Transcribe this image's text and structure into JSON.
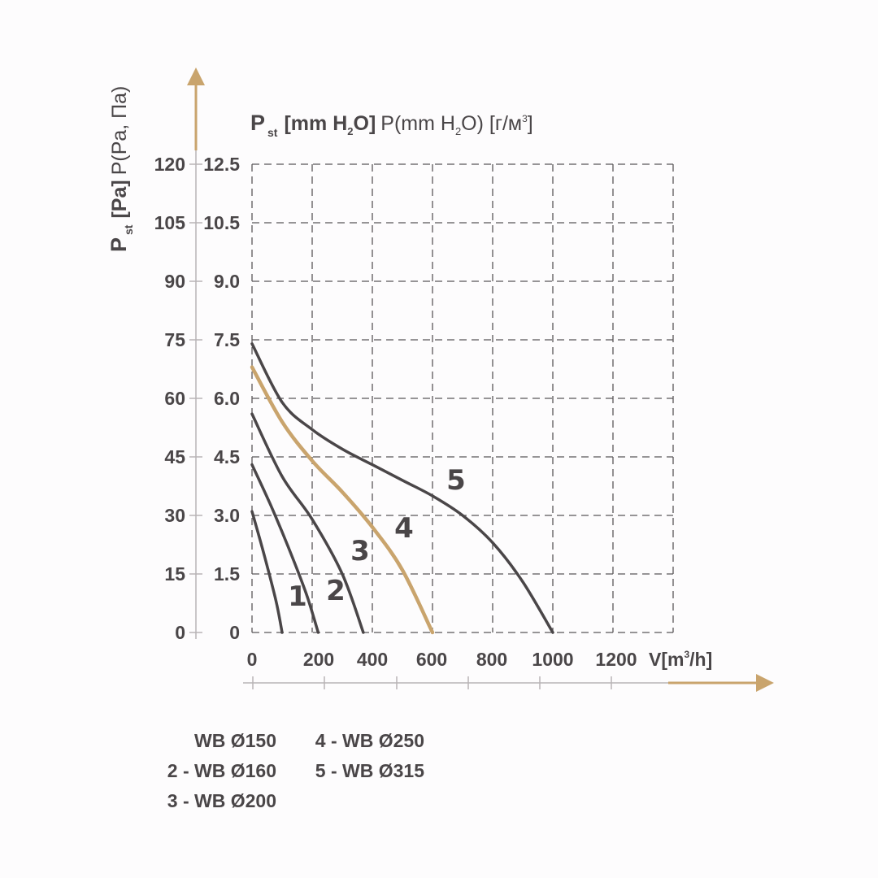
{
  "chart_data": {
    "type": "line",
    "title": "",
    "y_axis_left": {
      "label_main": "P",
      "label_sub": "st",
      "label_bold": "[Pa]",
      "label_rest": "P(Pa, Па)",
      "ticks": [
        "0",
        "15",
        "30",
        "45",
        "60",
        "75",
        "90",
        "105",
        "120"
      ]
    },
    "y_axis_right": {
      "label_main": "P",
      "label_sub": "st",
      "label_bold_pre": "[mm H",
      "label_bold_sub": "2",
      "label_bold_post": "O]",
      "label_rest_pre": "P(mm H",
      "label_rest_sub": "2",
      "label_rest_post": "O) [г/м",
      "label_rest_sup": "3",
      "label_rest_end": "]",
      "ticks": [
        "0",
        "1.5",
        "3.0",
        "4.5",
        "6.0",
        "7.5",
        "9.0",
        "10.5",
        "12.5"
      ]
    },
    "x_axis": {
      "label_pre": "V[m",
      "label_sup": "3",
      "label_post": "/h]",
      "ticks": [
        "0",
        "200",
        "400",
        "600",
        "800",
        "1000",
        "1200"
      ],
      "xlim": [
        0,
        1400
      ]
    },
    "ylim": [
      0,
      120
    ],
    "grid": true,
    "series": [
      {
        "name": "1",
        "color": "#4a4648",
        "x": [
          0,
          40,
          80,
          100
        ],
        "y": [
          31,
          20,
          8,
          0
        ]
      },
      {
        "name": "2",
        "color": "#4a4648",
        "x": [
          0,
          60,
          120,
          180,
          220
        ],
        "y": [
          43,
          33,
          22,
          10,
          0
        ]
      },
      {
        "name": "3",
        "color": "#4a4648",
        "x": [
          0,
          100,
          200,
          300,
          370
        ],
        "y": [
          56,
          40,
          29,
          15,
          0
        ]
      },
      {
        "name": "4",
        "color": "#c9a46d",
        "x": [
          0,
          100,
          200,
          300,
          400,
          500,
          600
        ],
        "y": [
          68,
          54,
          44,
          36,
          27,
          16,
          0
        ]
      },
      {
        "name": "5",
        "color": "#4a4648",
        "x": [
          0,
          100,
          200,
          300,
          400,
          500,
          600,
          700,
          800,
          900,
          1000
        ],
        "y": [
          74,
          59,
          52,
          47,
          43,
          39,
          35,
          30,
          23,
          13,
          0
        ]
      }
    ],
    "legend": [
      [
        "WB Ø150",
        "2 - WB Ø160",
        "3 - WB Ø200"
      ],
      [
        "4 - WB Ø250",
        "5 - WB Ø315"
      ]
    ],
    "colors": {
      "accent": "#c9a46d",
      "ink": "#4a4648",
      "grid": "#5a5658"
    }
  }
}
